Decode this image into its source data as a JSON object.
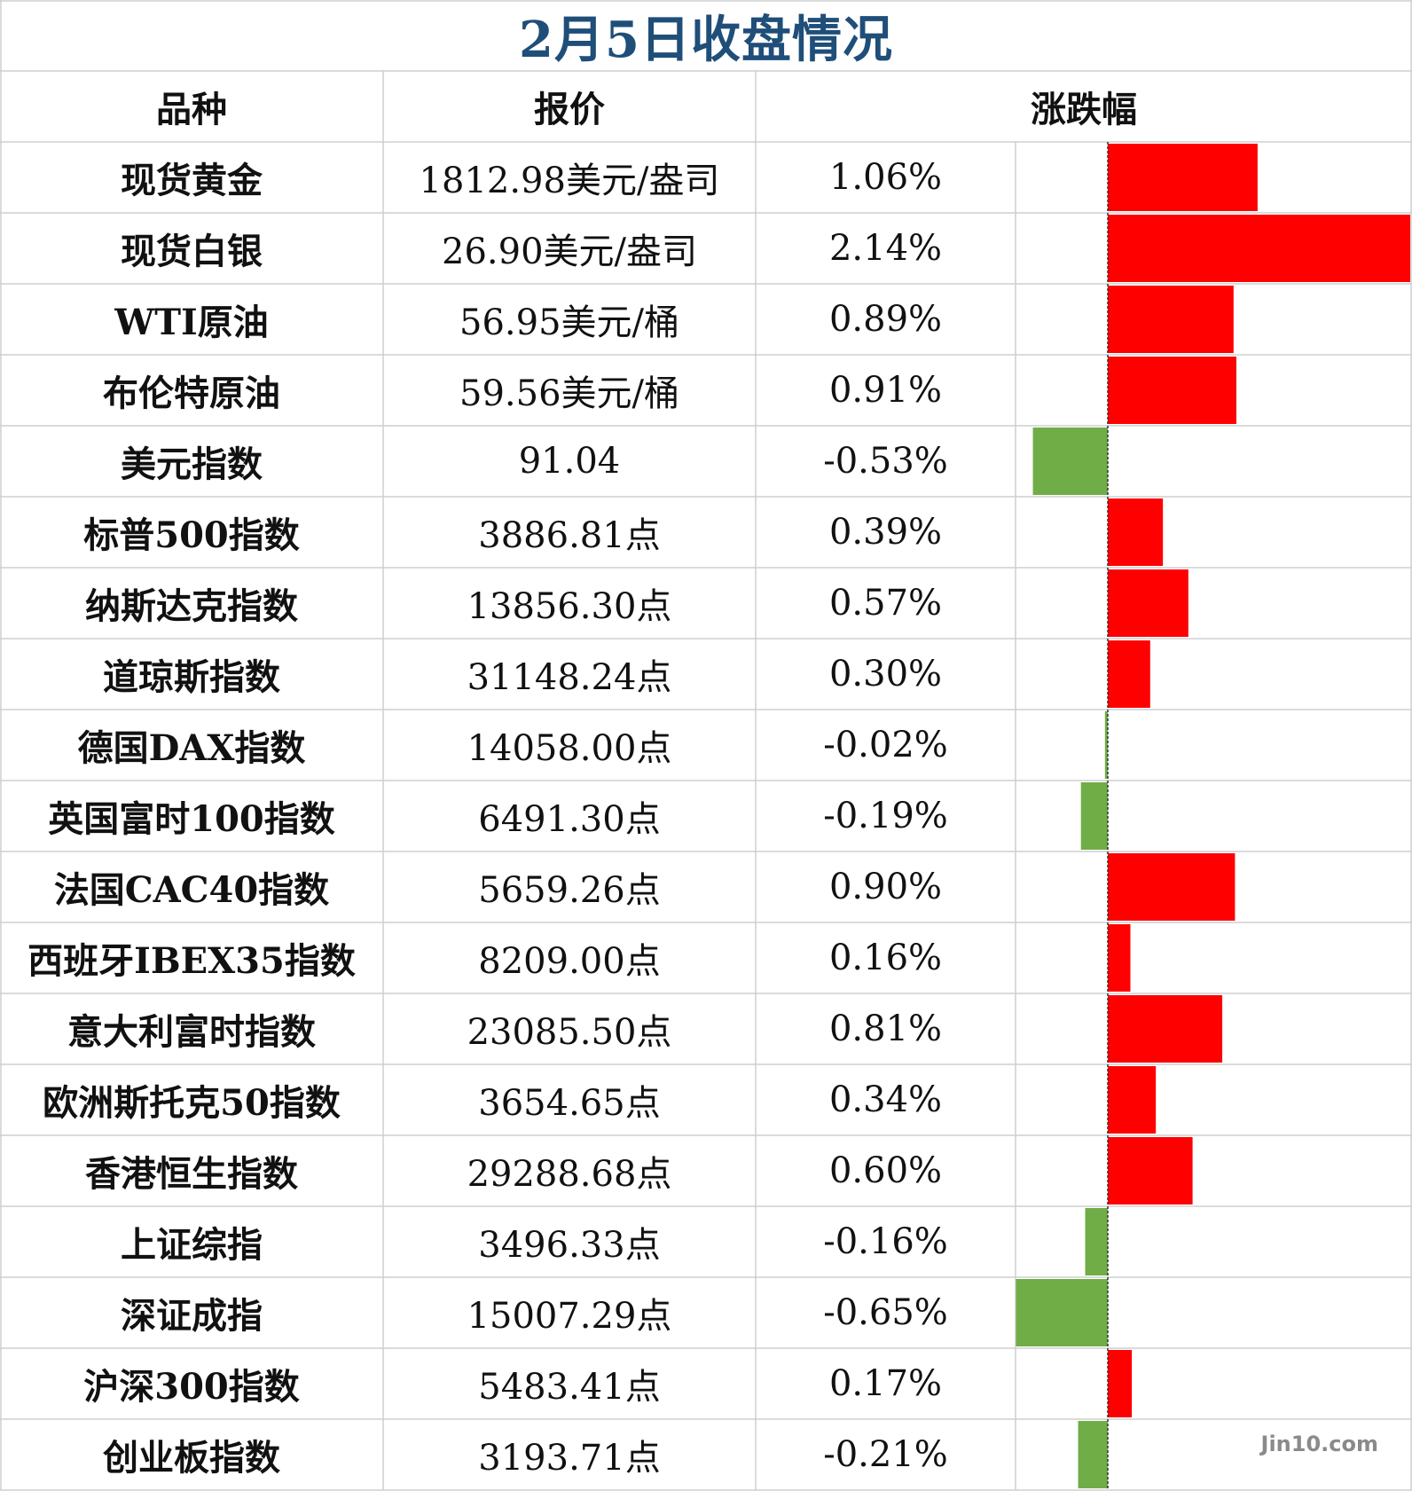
{
  "title": "2月5日收盘情况",
  "headers": {
    "col1": "品种",
    "col2": "报价",
    "col3": "涨跌幅"
  },
  "watermark": "Jin10.com",
  "colors": {
    "up": "#ff0000",
    "down": "#70ad47",
    "title": "#1f4e79",
    "grid": "#cfcfcf"
  },
  "chart_data": {
    "type": "bar",
    "orientation": "horizontal",
    "title": "",
    "categories": [
      "现货黄金",
      "现货白银",
      "WTI原油",
      "布伦特原油",
      "美元指数",
      "标普500指数",
      "纳斯达克指数",
      "道琼斯指数",
      "德国DAX指数",
      "英国富时100指数",
      "法国CAC40指数",
      "西班牙IBEX35指数",
      "意大利富时指数",
      "欧洲斯托克50指数",
      "香港恒生指数",
      "上证综指",
      "深证成指",
      "沪深300指数",
      "创业板指数"
    ],
    "values": [
      1.06,
      2.14,
      0.89,
      0.91,
      -0.53,
      0.39,
      0.57,
      0.3,
      -0.02,
      -0.19,
      0.9,
      0.16,
      0.81,
      0.34,
      0.6,
      -0.16,
      -0.65,
      0.17,
      -0.21
    ],
    "value_labels": [
      "1.06%",
      "2.14%",
      "0.89%",
      "0.91%",
      "-0.53%",
      "0.39%",
      "0.57%",
      "0.30%",
      "-0.02%",
      "-0.19%",
      "0.90%",
      "0.16%",
      "0.81%",
      "0.34%",
      "0.60%",
      "-0.16%",
      "-0.65%",
      "0.17%",
      "-0.21%"
    ],
    "prices": [
      "1812.98美元/盎司",
      "26.90美元/盎司",
      "56.95美元/桶",
      "59.56美元/桶",
      "91.04",
      "3886.81点",
      "13856.30点",
      "31148.24点",
      "14058.00点",
      "6491.30点",
      "5659.26点",
      "8209.00点",
      "23085.50点",
      "3654.65点",
      "29288.68点",
      "3496.33点",
      "15007.29点",
      "5483.41点",
      "3193.71点"
    ]
  }
}
